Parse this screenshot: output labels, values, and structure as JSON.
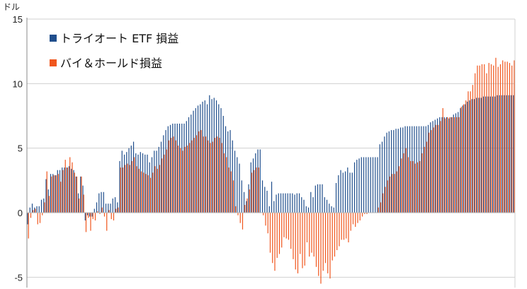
{
  "chart_data": {
    "type": "bar",
    "ylabel": "ドル",
    "ylim": [
      -5.8,
      15
    ],
    "yticks": [
      15,
      10,
      5,
      0,
      -5
    ],
    "ytick_labels": [
      "15",
      "10",
      "5",
      "0",
      "-5"
    ],
    "grid": true,
    "legend_position": "top-left",
    "series": [
      {
        "name": "トライオート ETF 損益",
        "color": "#1F4E8C",
        "values": [
          -0.9,
          0.4,
          0.7,
          0.4,
          0.5,
          0.5,
          1.0,
          1.1,
          2.6,
          1.8,
          3.0,
          3.0,
          2.9,
          3.3,
          3.3,
          3.5,
          3.5,
          3.5,
          3.6,
          3.4,
          3.3,
          2.8,
          1.5,
          2.8,
          2.1,
          -0.6,
          -0.2,
          -0.3,
          -0.3,
          0.3,
          0.8,
          1.5,
          1.6,
          1.6,
          0.7,
          0.7,
          0.7,
          1.1,
          1.2,
          0.8,
          4.0,
          4.8,
          4.5,
          4.7,
          5.0,
          5.2,
          5.5,
          4.6,
          4.5,
          4.7,
          4.6,
          4.5,
          4.5,
          3.9,
          4.3,
          4.8,
          4.8,
          5.1,
          5.5,
          6.0,
          6.4,
          6.7,
          6.8,
          6.9,
          6.9,
          6.9,
          6.9,
          6.9,
          6.9,
          7.1,
          7.4,
          7.6,
          7.9,
          8.1,
          8.3,
          8.4,
          8.6,
          8.7,
          8.4,
          9.1,
          8.8,
          8.9,
          8.7,
          8.4,
          8.1,
          7.5,
          6.7,
          6.3,
          6.4,
          5.6,
          4.8,
          4.3,
          3.8,
          2.5,
          1.6,
          0.9,
          2.2,
          3.9,
          4.2,
          4.6,
          4.9,
          4.9,
          2.5,
          2.0,
          1.7,
          0.5,
          2.4,
          0.9,
          1.4,
          1.5,
          1.5,
          1.5,
          1.5,
          1.5,
          1.5,
          1.5,
          1.4,
          1.5,
          1.5,
          1.2,
          1.0,
          0.5,
          0.4,
          1.6,
          1.2,
          2.1,
          2.2,
          2.2,
          2.2,
          1.2,
          1.0,
          0.7,
          0.5,
          0.4,
          2.3,
          2.9,
          3.3,
          3.1,
          3.2,
          3.5,
          3.1,
          3.1,
          3.9,
          4.1,
          4.2,
          4.3,
          4.3,
          4.3,
          4.3,
          4.3,
          4.3,
          4.3,
          4.3,
          5.3,
          5.5,
          5.9,
          6.2,
          6.3,
          6.4,
          6.4,
          6.5,
          6.5,
          6.6,
          6.6,
          6.7,
          6.7,
          6.7,
          6.7,
          6.7,
          6.7,
          6.7,
          6.7,
          6.7,
          6.7,
          6.8,
          7.0,
          7.1,
          7.2,
          7.3,
          7.4,
          7.4,
          7.4,
          7.4,
          7.3,
          7.4,
          7.6,
          7.7,
          7.8,
          8.1,
          8.3,
          8.4,
          8.6,
          8.7,
          8.8,
          8.8,
          8.9,
          8.9,
          8.9,
          9.0,
          9.0,
          9.0,
          9.0,
          9.0,
          9.0,
          9.1,
          9.1,
          9.1,
          9.1,
          9.1,
          9.1,
          9.1,
          9.1
        ]
      },
      {
        "name": "バイ＆ホールド損益",
        "color": "#F0561D",
        "values": [
          -2.0,
          -0.4,
          0.2,
          0.3,
          -0.9,
          -0.8,
          -0.2,
          0.8,
          3.2,
          1.3,
          2.8,
          2.9,
          2.9,
          3.0,
          2.4,
          3.3,
          4.1,
          3.5,
          4.3,
          3.9,
          3.1,
          2.8,
          1.1,
          2.8,
          1.4,
          -1.5,
          -0.4,
          -1.4,
          -0.5,
          -0.6,
          0.1,
          -0.1,
          0.4,
          -0.3,
          -1.4,
          0.2,
          -0.5,
          -0.6,
          0.3,
          0.4,
          3.5,
          3.5,
          3.7,
          3.8,
          3.7,
          4.0,
          4.3,
          3.6,
          3.4,
          3.2,
          3.1,
          3.0,
          2.9,
          2.7,
          3.1,
          3.6,
          3.4,
          3.7,
          4.2,
          4.5,
          4.9,
          5.6,
          5.8,
          5.9,
          5.6,
          5.2,
          5.0,
          4.8,
          5.1,
          5.2,
          5.4,
          5.6,
          5.8,
          6.0,
          6.3,
          6.4,
          5.9,
          5.9,
          5.6,
          5.4,
          5.5,
          5.8,
          5.9,
          5.8,
          5.4,
          4.6,
          4.3,
          3.5,
          3.2,
          2.5,
          0.5,
          -0.2,
          -0.8,
          -1.3,
          0.6,
          1.1,
          1.8,
          3.1,
          3.3,
          3.5,
          3.5,
          0.0,
          -0.2,
          -1.0,
          -1.6,
          -3.1,
          -3.9,
          -4.5,
          -3.5,
          -3.2,
          -2.7,
          -1.9,
          -2.0,
          -2.1,
          -2.8,
          -3.6,
          -4.4,
          -4.7,
          -3.2,
          -4.3,
          -4.1,
          -2.3,
          -3.4,
          -3.1,
          -3.4,
          -4.2,
          -4.9,
          -5.5,
          -4.5,
          -3.9,
          -4.7,
          -5.1,
          -3.7,
          -3.4,
          -2.9,
          -2.6,
          -2.1,
          -2.1,
          -2.0,
          -2.3,
          -1.4,
          -0.9,
          -1.1,
          -0.8,
          -0.6,
          -0.3,
          -0.1,
          -0.1,
          0.0,
          0.0,
          0.0,
          0.0,
          0.4,
          0.8,
          1.5,
          2.0,
          2.5,
          2.8,
          3.0,
          3.0,
          3.2,
          3.6,
          4.2,
          4.6,
          5.0,
          4.3,
          4.0,
          4.0,
          3.8,
          3.9,
          4.0,
          4.6,
          5.1,
          5.5,
          6.2,
          6.4,
          6.6,
          6.8,
          6.8,
          7.1,
          8.1,
          7.3,
          7.4,
          7.4,
          7.4,
          7.4,
          7.4,
          7.4,
          8.2,
          8.4,
          8.7,
          9.4,
          9.4,
          9.9,
          10.8,
          11.4,
          11.4,
          11.5,
          11.5,
          10.8,
          11.6,
          11.5,
          11.4,
          12.0,
          11.3,
          11.5,
          11.8,
          11.7,
          11.7,
          11.6,
          11.4,
          11.8
        ]
      }
    ]
  }
}
